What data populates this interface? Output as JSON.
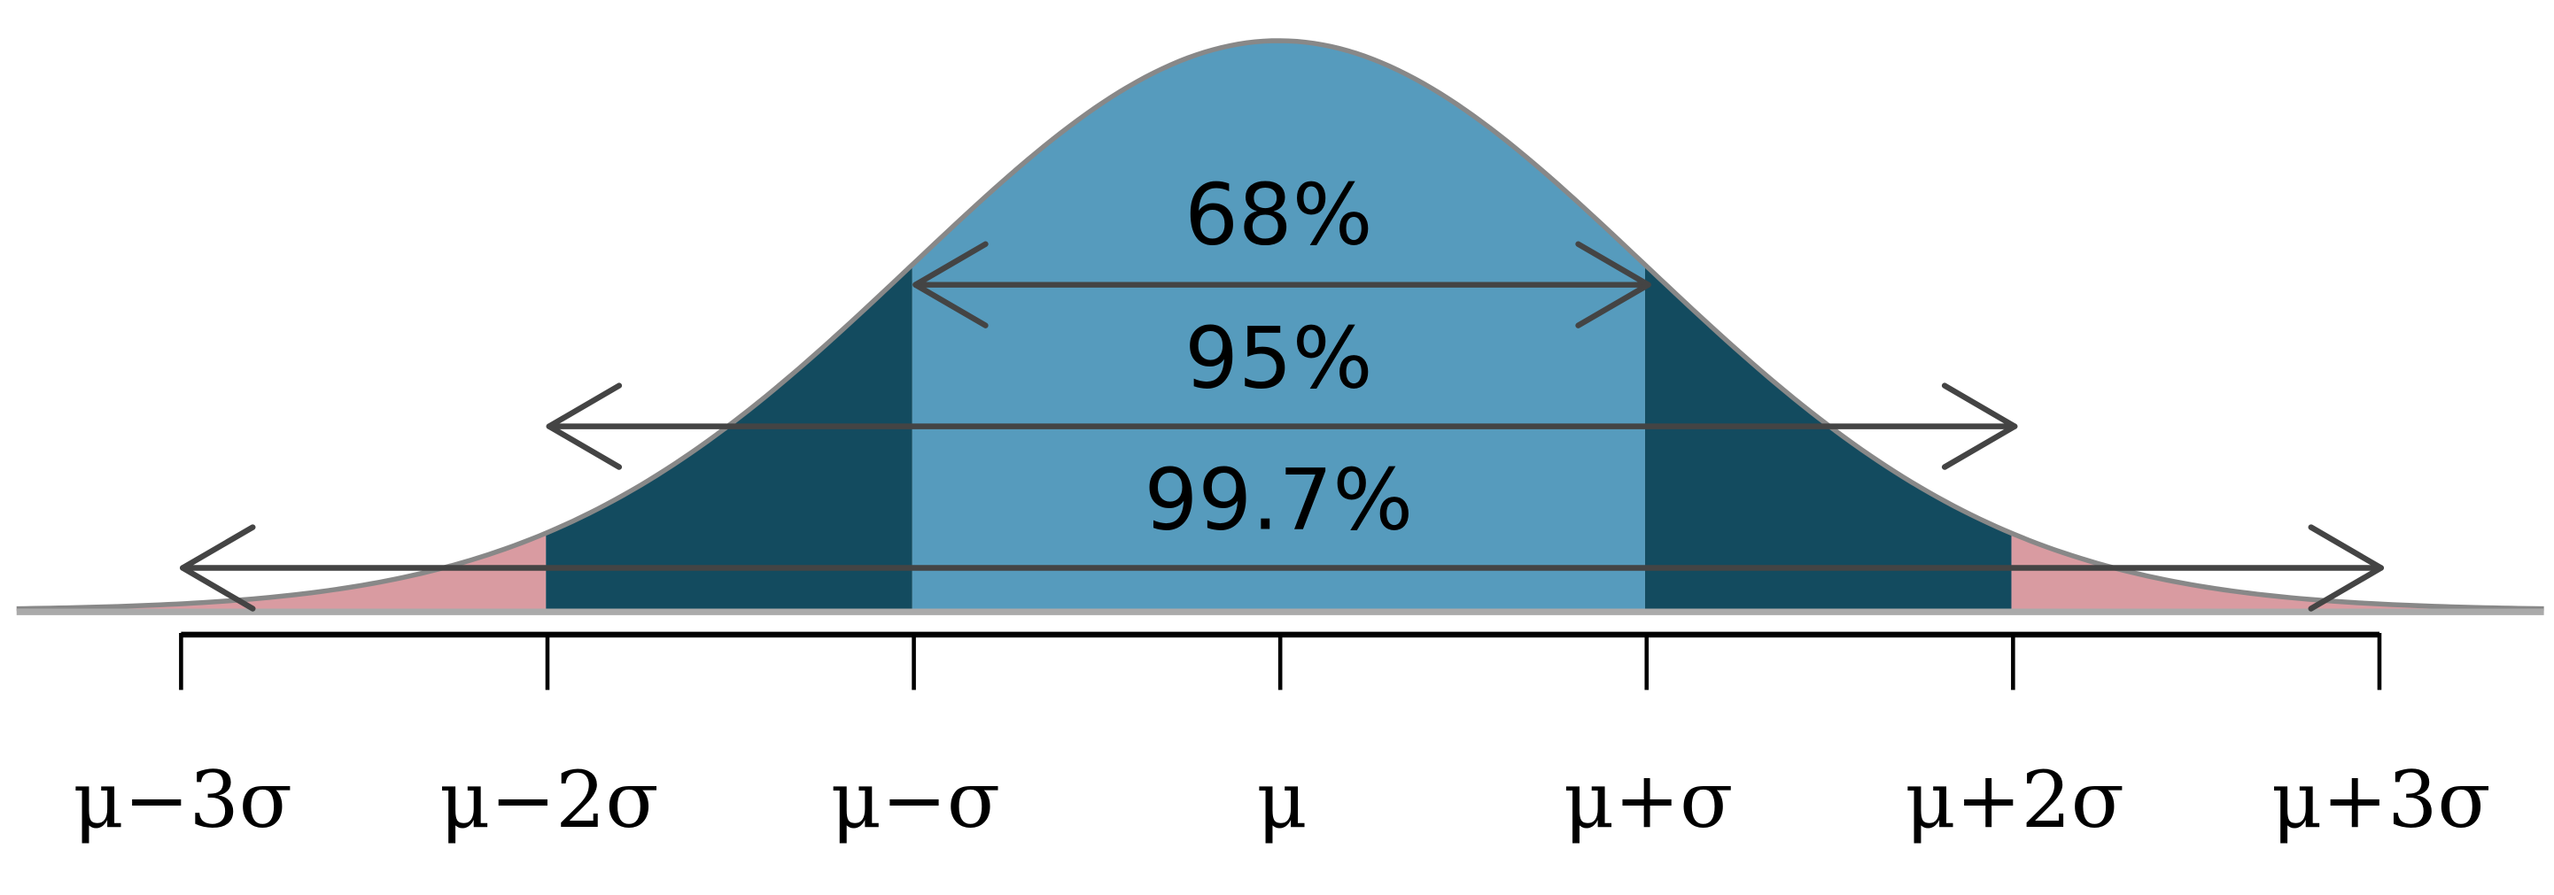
{
  "chart_data": {
    "type": "area",
    "distribution": "normal",
    "x_range_sigma": [
      -3.5,
      3.5
    ],
    "tick_positions_sigma": [
      -3,
      -2,
      -1,
      0,
      1,
      2,
      3
    ],
    "tick_labels": [
      "μ−3σ",
      "μ−2σ",
      "μ−σ",
      "μ",
      "μ+σ",
      "μ+2σ",
      "μ+3σ"
    ],
    "regions": [
      {
        "from": -1,
        "to": 1,
        "color": "#569bbd"
      },
      {
        "from": -2,
        "to": -1,
        "color": "#134b5f"
      },
      {
        "from": 1,
        "to": 2,
        "color": "#134b5f"
      },
      {
        "from": -3,
        "to": -2,
        "color": "#d99ba1"
      },
      {
        "from": 2,
        "to": 3,
        "color": "#d99ba1"
      }
    ],
    "intervals": [
      {
        "label": "68%",
        "from": -1,
        "to": 1
      },
      {
        "label": "95%",
        "from": -2,
        "to": 2
      },
      {
        "label": "99.7%",
        "from": -3,
        "to": 3
      }
    ],
    "curve_color": "#888888",
    "arrow_color": "#444444",
    "baseline_color": "#aaaaaa"
  }
}
